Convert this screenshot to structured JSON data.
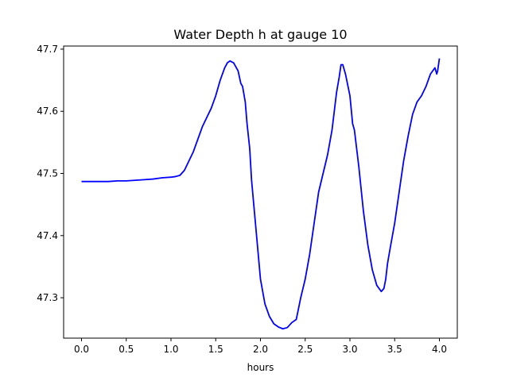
{
  "chart_data": {
    "type": "line",
    "title": "Water Depth h at gauge 10",
    "xlabel": "hours",
    "ylabel": "",
    "xlim": [
      -0.2,
      4.2
    ],
    "ylim": [
      47.235,
      47.705
    ],
    "xticks": [
      0.0,
      0.5,
      1.0,
      1.5,
      2.0,
      2.5,
      3.0,
      3.5,
      4.0
    ],
    "xtick_labels": [
      "0.0",
      "0.5",
      "1.0",
      "1.5",
      "2.0",
      "2.5",
      "3.0",
      "3.5",
      "4.0"
    ],
    "yticks": [
      47.3,
      47.4,
      47.5,
      47.6,
      47.7
    ],
    "ytick_labels": [
      "47.3",
      "47.4",
      "47.5",
      "47.6",
      "47.7"
    ],
    "grid": false,
    "series": [
      {
        "color": "#0000ff",
        "x": [
          0.0,
          0.1,
          0.2,
          0.3,
          0.4,
          0.5,
          0.6,
          0.7,
          0.8,
          0.9,
          1.0,
          1.05,
          1.1,
          1.15,
          1.2,
          1.25,
          1.3,
          1.35,
          1.4,
          1.45,
          1.5,
          1.55,
          1.6,
          1.63,
          1.66,
          1.7,
          1.75,
          1.78,
          1.8,
          1.83,
          1.85,
          1.88,
          1.9,
          1.95,
          2.0,
          2.05,
          2.1,
          2.15,
          2.2,
          2.25,
          2.3,
          2.35,
          2.4,
          2.45,
          2.5,
          2.55,
          2.6,
          2.65,
          2.7,
          2.75,
          2.8,
          2.85,
          2.88,
          2.9,
          2.92,
          2.95,
          3.0,
          3.03,
          3.05,
          3.1,
          3.15,
          3.2,
          3.25,
          3.3,
          3.35,
          3.38,
          3.4,
          3.42,
          3.45,
          3.5,
          3.55,
          3.6,
          3.65,
          3.7,
          3.75,
          3.8,
          3.85,
          3.9,
          3.95,
          3.97,
          3.98,
          4.0
        ],
        "y": [
          47.487,
          47.487,
          47.487,
          47.487,
          47.488,
          47.488,
          47.489,
          47.49,
          47.491,
          47.493,
          47.494,
          47.495,
          47.497,
          47.505,
          47.52,
          47.535,
          47.555,
          47.575,
          47.59,
          47.605,
          47.625,
          47.65,
          47.67,
          47.678,
          47.681,
          47.678,
          47.665,
          47.645,
          47.64,
          47.615,
          47.58,
          47.54,
          47.49,
          47.41,
          47.33,
          47.29,
          47.27,
          47.258,
          47.253,
          47.25,
          47.252,
          47.26,
          47.265,
          47.3,
          47.33,
          47.37,
          47.42,
          47.47,
          47.5,
          47.53,
          47.57,
          47.63,
          47.655,
          47.675,
          47.675,
          47.66,
          47.625,
          47.58,
          47.57,
          47.51,
          47.44,
          47.385,
          47.345,
          47.32,
          47.31,
          47.315,
          47.33,
          47.355,
          47.38,
          47.42,
          47.47,
          47.52,
          47.56,
          47.595,
          47.615,
          47.625,
          47.64,
          47.66,
          47.67,
          47.66,
          47.665,
          47.685
        ]
      }
    ]
  }
}
